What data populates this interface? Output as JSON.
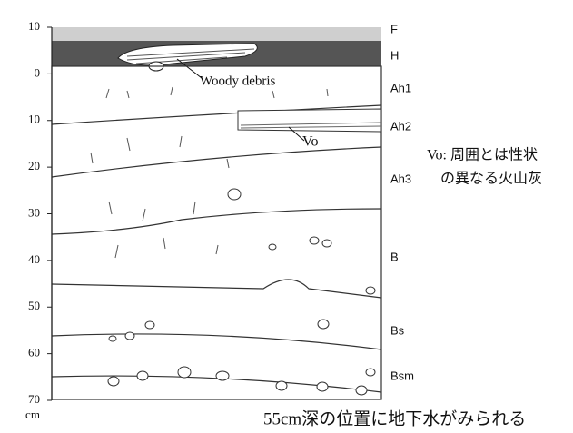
{
  "axis": {
    "ylim": [
      -10,
      70
    ],
    "ticks": [
      {
        "value": -10,
        "label": "10"
      },
      0,
      10,
      20,
      30,
      40,
      50,
      60,
      70
    ],
    "unit": "cm"
  },
  "horizons": [
    "F",
    "H",
    "Ah1",
    "Ah2",
    "Ah3",
    "B",
    "Bs",
    "Bsm"
  ],
  "annotations": {
    "woody": "Woody debris",
    "vo": "Vo",
    "note_line1": "Vo: 周囲とは性状",
    "note_line2": "の異なる火山灰",
    "caption": "55cm深の位置に地下水がみられる"
  }
}
